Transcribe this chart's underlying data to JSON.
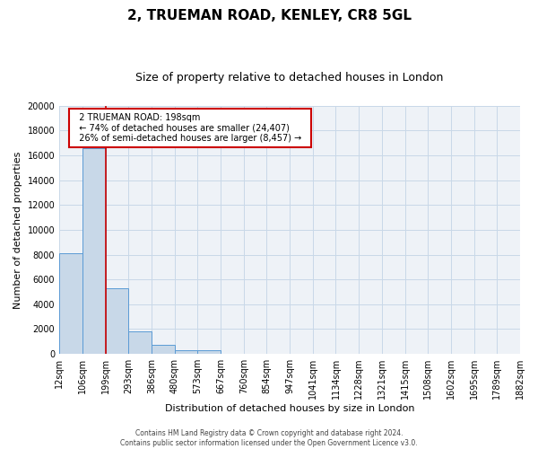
{
  "title": "2, TRUEMAN ROAD, KENLEY, CR8 5GL",
  "subtitle": "Size of property relative to detached houses in London",
  "xlabel": "Distribution of detached houses by size in London",
  "ylabel": "Number of detached properties",
  "bin_labels": [
    "12sqm",
    "106sqm",
    "199sqm",
    "293sqm",
    "386sqm",
    "480sqm",
    "573sqm",
    "667sqm",
    "760sqm",
    "854sqm",
    "947sqm",
    "1041sqm",
    "1134sqm",
    "1228sqm",
    "1321sqm",
    "1415sqm",
    "1508sqm",
    "1602sqm",
    "1695sqm",
    "1789sqm",
    "1882sqm"
  ],
  "bar_values": [
    8100,
    16600,
    5300,
    1850,
    750,
    300,
    270,
    0,
    0,
    0,
    0,
    0,
    0,
    0,
    0,
    0,
    0,
    0,
    0,
    0
  ],
  "bar_color": "#c8d8e8",
  "bar_edge_color": "#5b9bd5",
  "vline_x": 2,
  "vline_color": "#cc0000",
  "ylim": [
    0,
    20000
  ],
  "yticks": [
    0,
    2000,
    4000,
    6000,
    8000,
    10000,
    12000,
    14000,
    16000,
    18000,
    20000
  ],
  "annotation_title": "2 TRUEMAN ROAD: 198sqm",
  "annotation_line1": "← 74% of detached houses are smaller (24,407)",
  "annotation_line2": "26% of semi-detached houses are larger (8,457) →",
  "annotation_box_color": "#ffffff",
  "annotation_box_edge": "#cc0000",
  "grid_color": "#c8d8e8",
  "footer_line1": "Contains HM Land Registry data © Crown copyright and database right 2024.",
  "footer_line2": "Contains public sector information licensed under the Open Government Licence v3.0.",
  "bg_color": "#eef2f7",
  "title_fontsize": 11,
  "subtitle_fontsize": 9,
  "ylabel_fontsize": 8,
  "xlabel_fontsize": 8,
  "tick_fontsize": 7,
  "annotation_fontsize": 7,
  "footer_fontsize": 5.5
}
